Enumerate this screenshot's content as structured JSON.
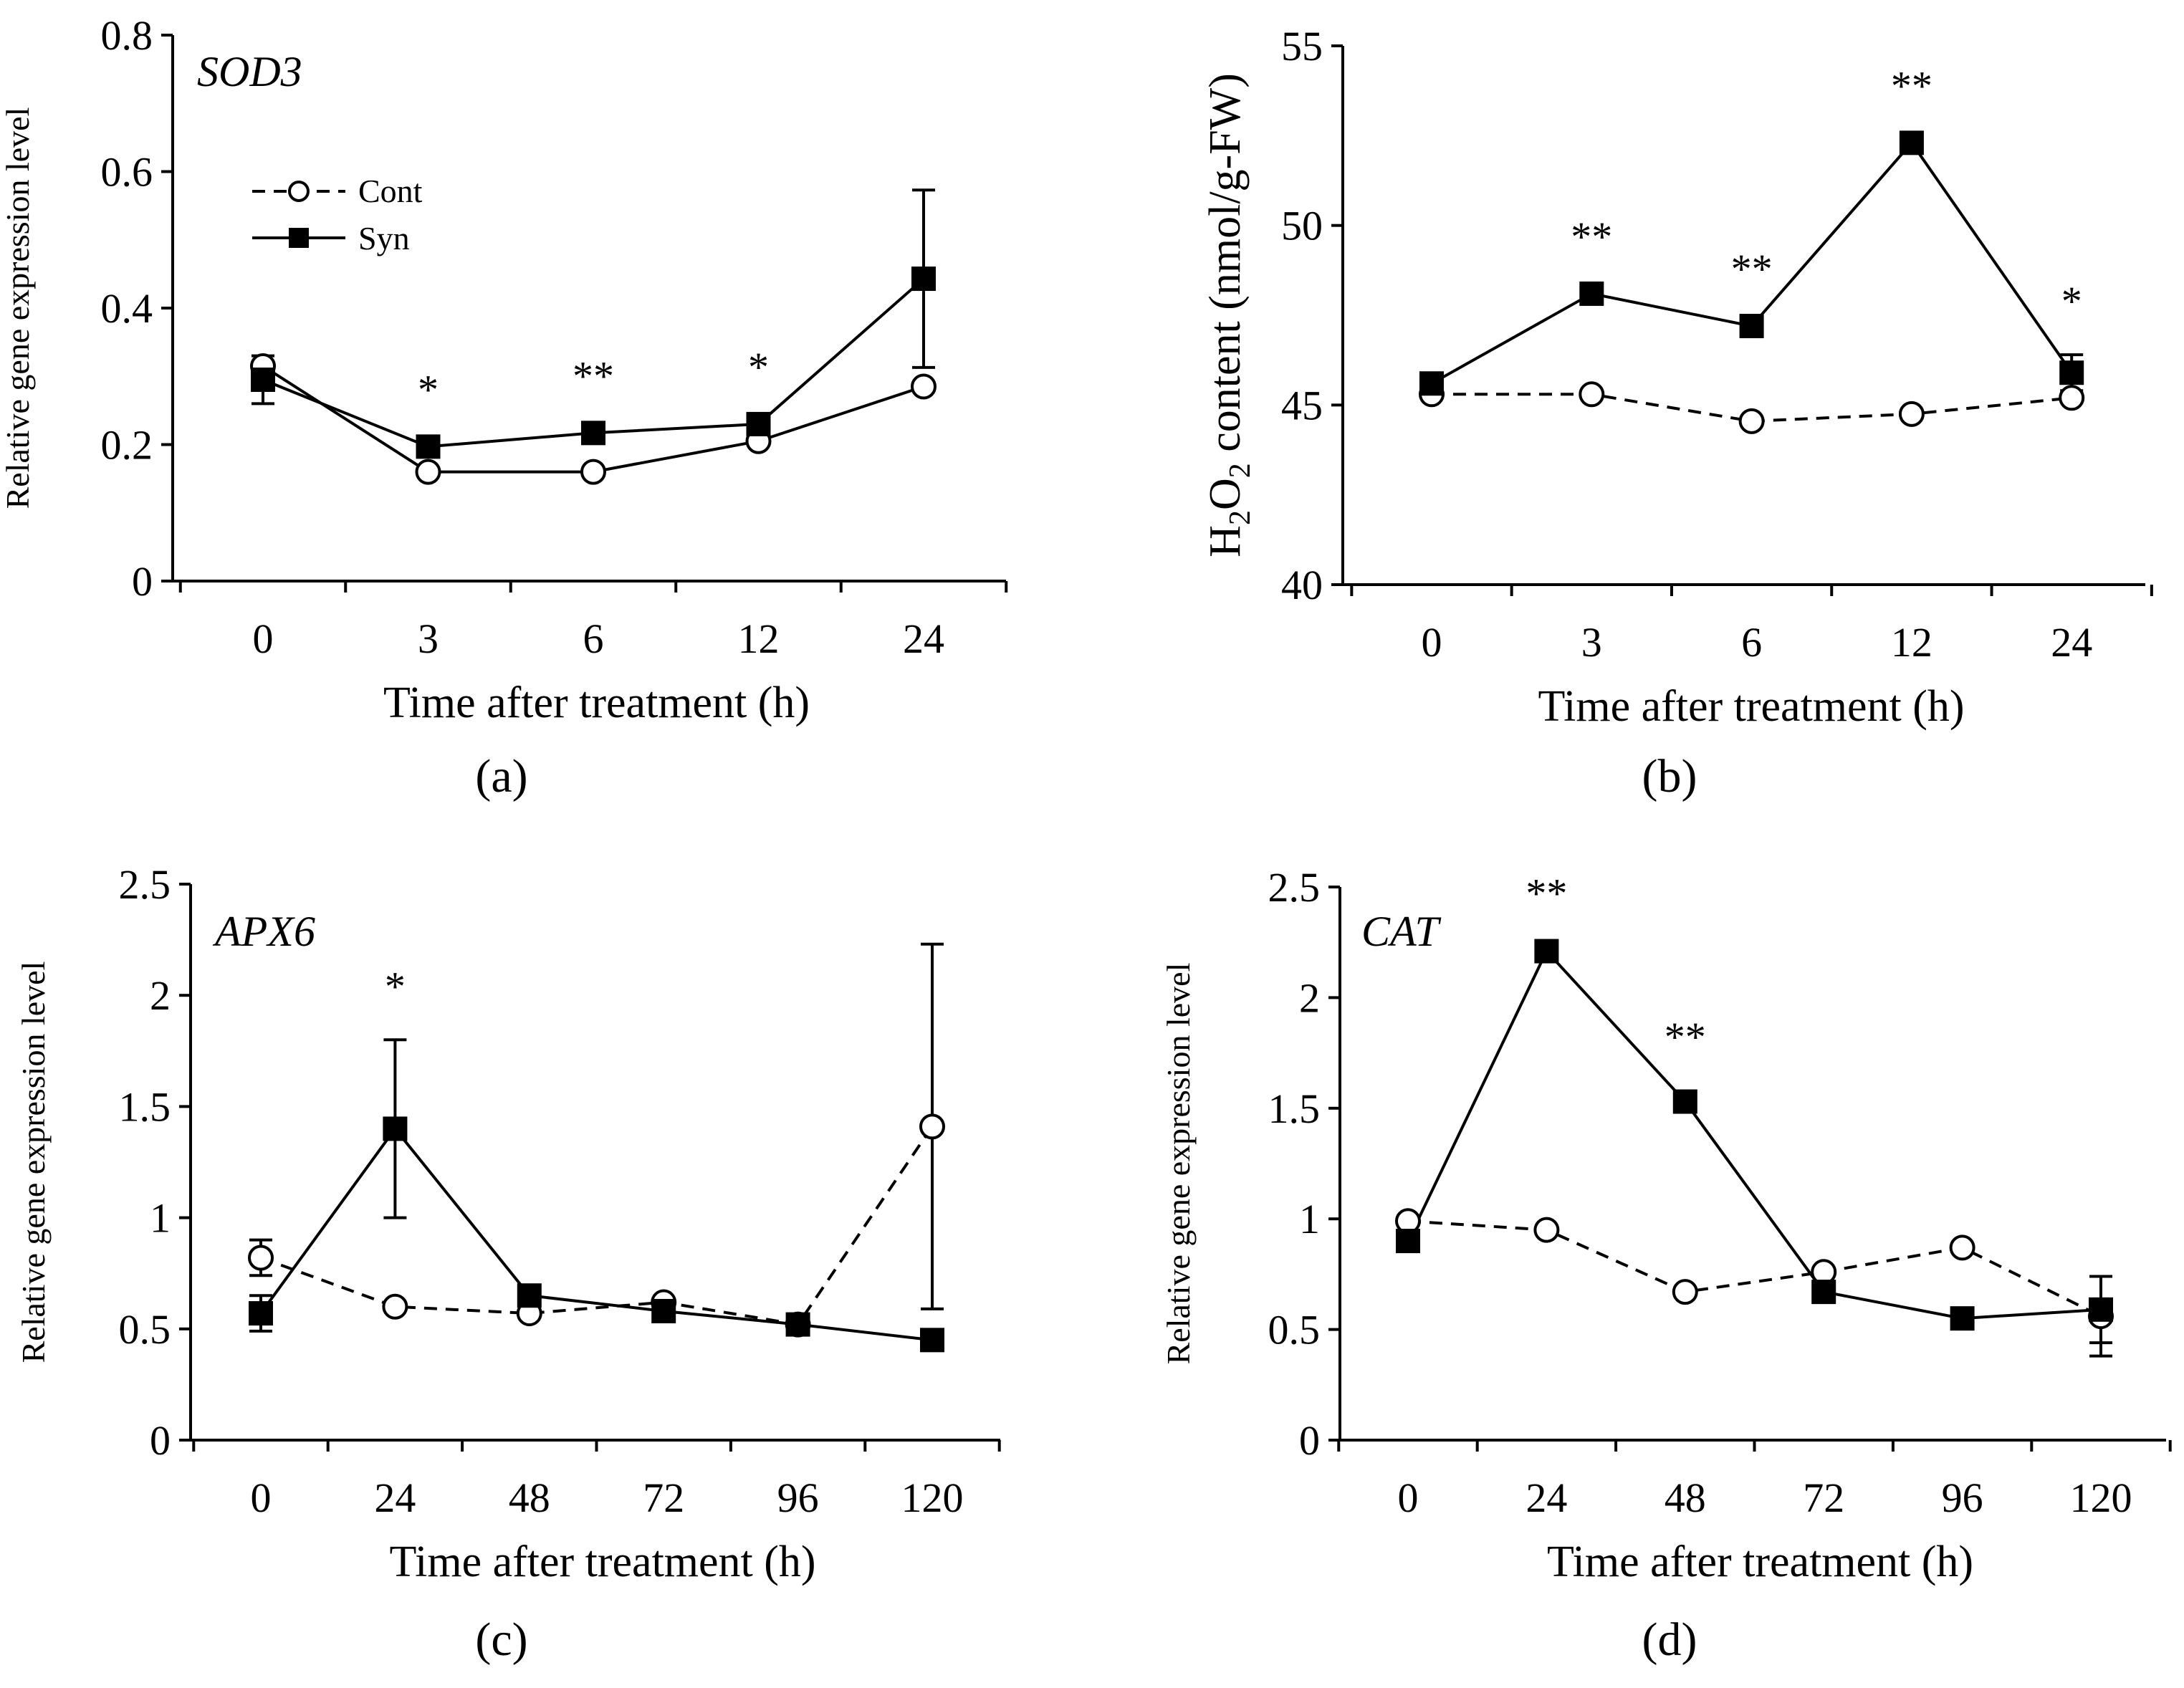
{
  "chart_data": [
    {
      "type": "line",
      "panel_label": "a",
      "gene": "SOD3",
      "xlabel": "Time after treatment (h)",
      "ylabel": "Relative gene expression level",
      "categories": [
        "0",
        "3",
        "6",
        "12",
        "24"
      ],
      "ylim": [
        0,
        0.8
      ],
      "yticks": [
        "0",
        "0.2",
        "0.4",
        "0.6",
        "0.8"
      ],
      "ytick_values": [
        0,
        0.2,
        0.4,
        0.6,
        0.8
      ],
      "series": [
        {
          "name": "Cont",
          "style": "dashed-open-circle",
          "values": [
            0.315,
            0.16,
            0.16,
            0.205,
            0.285
          ],
          "errors": [
            0.02,
            0.005,
            0.005,
            0.005,
            0.01
          ]
        },
        {
          "name": "Syn",
          "style": "solid-filled-square",
          "values": [
            0.295,
            0.197,
            0.217,
            0.23,
            0.443
          ],
          "errors": [
            0.035,
            0.005,
            0.005,
            0.005,
            0.13
          ]
        }
      ],
      "annotations": [
        "",
        "*",
        "**",
        "*",
        ""
      ],
      "legend": {
        "placement": "upper-left",
        "entries": [
          "Cont",
          "Syn"
        ]
      },
      "cont_dashed": false
    },
    {
      "type": "line",
      "panel_label": "b",
      "gene": "",
      "xlabel": "Time after treatment (h)",
      "ylabel_parts": [
        "H",
        "2",
        "O",
        "2",
        " content (nmol/g-FW)"
      ],
      "categories": [
        "0",
        "3",
        "6",
        "12",
        "24"
      ],
      "ylim": [
        40,
        55
      ],
      "yticks": [
        "40",
        "45",
        "50",
        "55"
      ],
      "ytick_values": [
        40,
        45,
        50,
        55
      ],
      "series": [
        {
          "name": "Cont",
          "style": "dashed-open-circle",
          "values": [
            45.3,
            45.3,
            44.55,
            44.75,
            45.2
          ],
          "errors": [
            0.1,
            0.1,
            0.1,
            0.1,
            0.1
          ]
        },
        {
          "name": "Syn",
          "style": "solid-filled-square",
          "values": [
            45.6,
            48.1,
            47.2,
            52.3,
            45.9
          ],
          "errors": [
            0.1,
            0.1,
            0.1,
            0.1,
            0.5
          ]
        }
      ],
      "annotations": [
        "",
        "**",
        "**",
        "**",
        "*"
      ],
      "cont_dashed": true
    },
    {
      "type": "line",
      "panel_label": "c",
      "gene": "APX6",
      "xlabel": "Time after treatment (h)",
      "ylabel": "Relative gene expression level",
      "categories": [
        "0",
        "24",
        "48",
        "72",
        "96",
        "120"
      ],
      "ylim": [
        0,
        2.5
      ],
      "yticks": [
        "0",
        "0.5",
        "1",
        "1.5",
        "2",
        "2.5"
      ],
      "ytick_values": [
        0,
        0.5,
        1,
        1.5,
        2,
        2.5
      ],
      "series": [
        {
          "name": "Cont",
          "style": "dashed-open-circle",
          "values": [
            0.82,
            0.6,
            0.57,
            0.62,
            0.52,
            1.41
          ],
          "errors": [
            0.08,
            0.02,
            0.02,
            0.02,
            0.02,
            0.82
          ]
        },
        {
          "name": "Syn",
          "style": "solid-filled-square",
          "values": [
            0.57,
            1.4,
            0.65,
            0.58,
            0.52,
            0.45
          ],
          "errors": [
            0.08,
            0.4,
            0.02,
            0.02,
            0.02,
            0.02
          ]
        }
      ],
      "annotations": [
        "",
        "*",
        "",
        "",
        "",
        ""
      ],
      "cont_dashed": true
    },
    {
      "type": "line",
      "panel_label": "d",
      "gene": "CAT",
      "xlabel": "Time after treatment (h)",
      "ylabel": "Relative gene expression level",
      "categories": [
        "0",
        "24",
        "48",
        "72",
        "96",
        "120"
      ],
      "ylim": [
        0,
        2.5
      ],
      "yticks": [
        "0",
        "0.5",
        "1",
        "1.5",
        "2",
        "2.5"
      ],
      "ytick_values": [
        0,
        0.5,
        1,
        1.5,
        2,
        2.5
      ],
      "series": [
        {
          "name": "Cont",
          "style": "dashed-open-circle",
          "values": [
            0.99,
            0.95,
            0.67,
            0.76,
            0.87,
            0.56
          ],
          "errors": [
            0.02,
            0.02,
            0.02,
            0.02,
            0.02,
            0.18
          ]
        },
        {
          "name": "Syn",
          "style": "solid-filled-square",
          "values": [
            0.9,
            2.21,
            1.53,
            0.67,
            0.55,
            0.59
          ],
          "errors": [
            0.02,
            0.02,
            0.05,
            0.03,
            0.02,
            0.15
          ]
        }
      ],
      "annotations": [
        "",
        "**",
        "**",
        "",
        "",
        ""
      ],
      "cont_dashed": true
    }
  ]
}
